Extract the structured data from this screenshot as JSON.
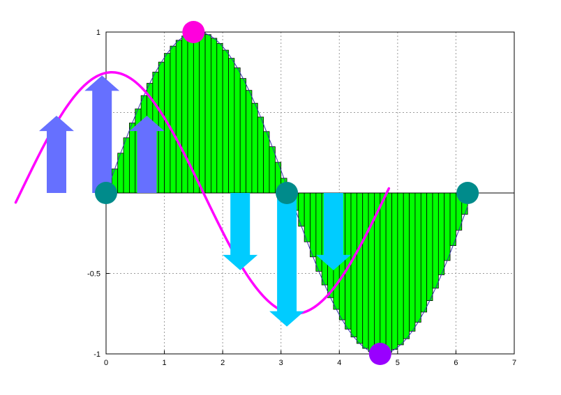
{
  "chart_data": {
    "type": "bar",
    "title": "",
    "xlabel": "",
    "ylabel": "",
    "xlim": [
      0,
      7
    ],
    "ylim": [
      -1,
      1
    ],
    "grid": true,
    "x_ticks": [
      "0",
      "1",
      "2",
      "3",
      "4",
      "5",
      "6",
      "7"
    ],
    "y_ticks": [
      "-1",
      "-0.5",
      "0",
      "0.5",
      "1"
    ],
    "y_ticks_visible": [
      "-1",
      "-0.5",
      "1"
    ],
    "bar_width": 0.1,
    "bar_color": "#00ff00",
    "bar_function": "sin(x)",
    "bar_x_start": 0.05,
    "bar_count": 62,
    "curve": {
      "function": "0.75*cos(x - 0.1)",
      "x_range": [
        -1.55,
        4.85
      ],
      "color": "#ff00ff"
    },
    "markers": [
      {
        "name": "zero-start",
        "x": 0.0,
        "y": 0.0,
        "color": "#008b8b"
      },
      {
        "name": "peak",
        "x": 1.5,
        "y": 1.0,
        "color": "#ff00dd"
      },
      {
        "name": "zero-middle",
        "x": 3.1,
        "y": 0.0,
        "color": "#008b8b"
      },
      {
        "name": "trough",
        "x": 4.7,
        "y": -1.0,
        "color": "#9900ff"
      },
      {
        "name": "zero-end",
        "x": 6.2,
        "y": 0.0,
        "color": "#008b8b"
      }
    ],
    "up_arrows": {
      "color": "#6670ff",
      "items": [
        {
          "x": -0.85,
          "length": 0.48
        },
        {
          "x": -0.07,
          "length": 0.73
        },
        {
          "x": 0.7,
          "length": 0.48
        }
      ]
    },
    "down_arrows": {
      "color": "#00ccff",
      "items": [
        {
          "x": 2.3,
          "length": 0.48
        },
        {
          "x": 3.1,
          "length": 0.83
        },
        {
          "x": 3.9,
          "length": 0.48
        }
      ]
    }
  }
}
